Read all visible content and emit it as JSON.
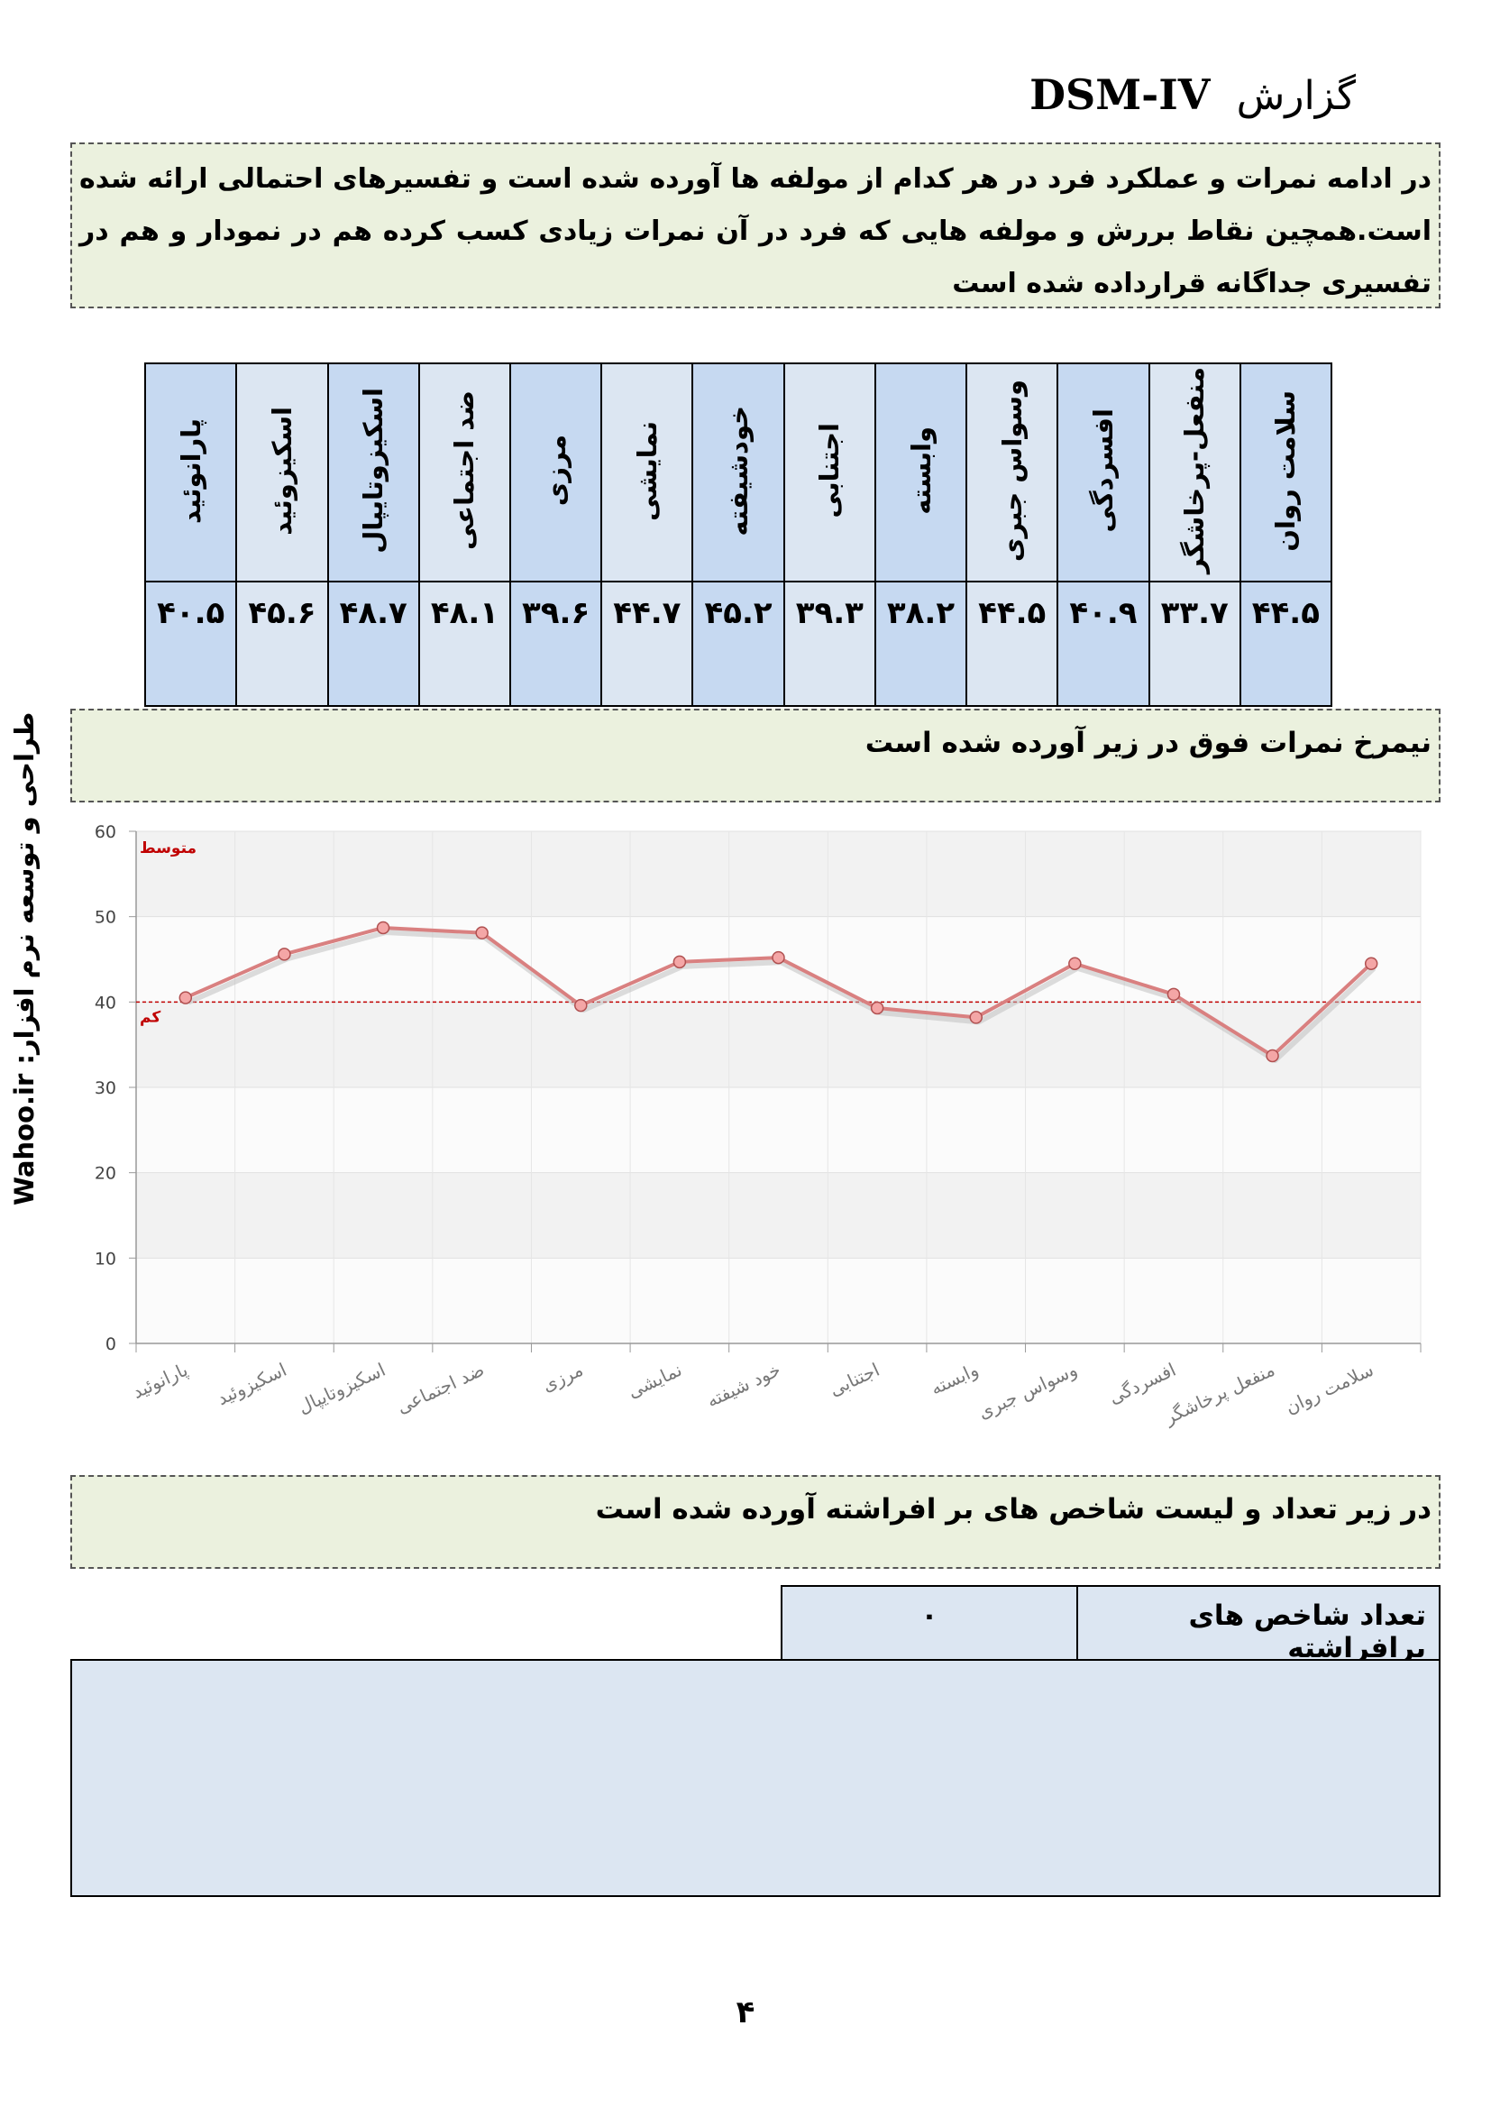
{
  "header": {
    "title_word": "گزارش",
    "title_code": "DSM-IV"
  },
  "intro": {
    "text": "در ادامه نمرات و عملکرد فرد در هر کدام از مولفه ها آورده شده است و تفسیرهای احتمالی ارائه شده است.همچین نقاط بررش و مولفه هایی که فرد در آن نمرات زیادی کسب کرده هم در نمودار و هم در تفسیری جداگانه قرارداده شده است"
  },
  "scores_table": {
    "columns": [
      {
        "label": "سلامت روان",
        "value": "۴۴.۵"
      },
      {
        "label": "منفعل-پرخاشگر",
        "value": "۳۳.۷"
      },
      {
        "label": "افسردگی",
        "value": "۴۰.۹"
      },
      {
        "label": "وسواس جبری",
        "value": "۴۴.۵"
      },
      {
        "label": "وابسته",
        "value": "۳۸.۲"
      },
      {
        "label": "اجتنابی",
        "value": "۳۹.۳"
      },
      {
        "label": "خودشیفته",
        "value": "۴۵.۲"
      },
      {
        "label": "نمایشی",
        "value": "۴۴.۷"
      },
      {
        "label": "مرزی",
        "value": "۳۹.۶"
      },
      {
        "label": "ضد اجتماعی",
        "value": "۴۸.۱"
      },
      {
        "label": "اسکیزوتایپال",
        "value": "۴۸.۷"
      },
      {
        "label": "اسکیزوئید",
        "value": "۴۵.۶"
      },
      {
        "label": "پارانوئید",
        "value": "۴۰.۵"
      }
    ]
  },
  "side_text": "طراحی و توسعه نرم افزار:  Wahoo.ir",
  "profile_box": {
    "text": "نیمرخ نمرات فوق در زیر آورده شده است"
  },
  "chart_data": {
    "type": "line",
    "categories": [
      "پارانوئید",
      "اسکیزوئید",
      "اسکیزوتایپال",
      "ضد اجتماعی",
      "مرزی",
      "نمایشی",
      "خود شیفته",
      "اجتنابی",
      "وابسته",
      "وسواس جبری",
      "افسردگی",
      "منفعل پرخاشگر",
      "سلامت روان"
    ],
    "series": [
      {
        "values": [
          40.5,
          45.6,
          48.7,
          48.1,
          39.6,
          44.7,
          45.2,
          39.3,
          38.2,
          44.5,
          40.9,
          33.7,
          44.5
        ]
      }
    ],
    "ylim": [
      0,
      60
    ],
    "yticks": [
      0,
      10,
      20,
      30,
      40,
      50,
      60
    ],
    "reference_line": {
      "value": 40,
      "label_low": "کم",
      "label_mid": "متوسط"
    },
    "grid": true,
    "colors": {
      "line": "#d98080",
      "marker": "#f4a6a6",
      "reference": "#c00000"
    }
  },
  "elevated_box": {
    "text": "در زیر تعداد و لیست شاخص های بر افراشته آورده شده است"
  },
  "elevated_count": {
    "label": "تعداد شاخص های برافراشته",
    "value": "۰"
  },
  "page_number": "۴"
}
